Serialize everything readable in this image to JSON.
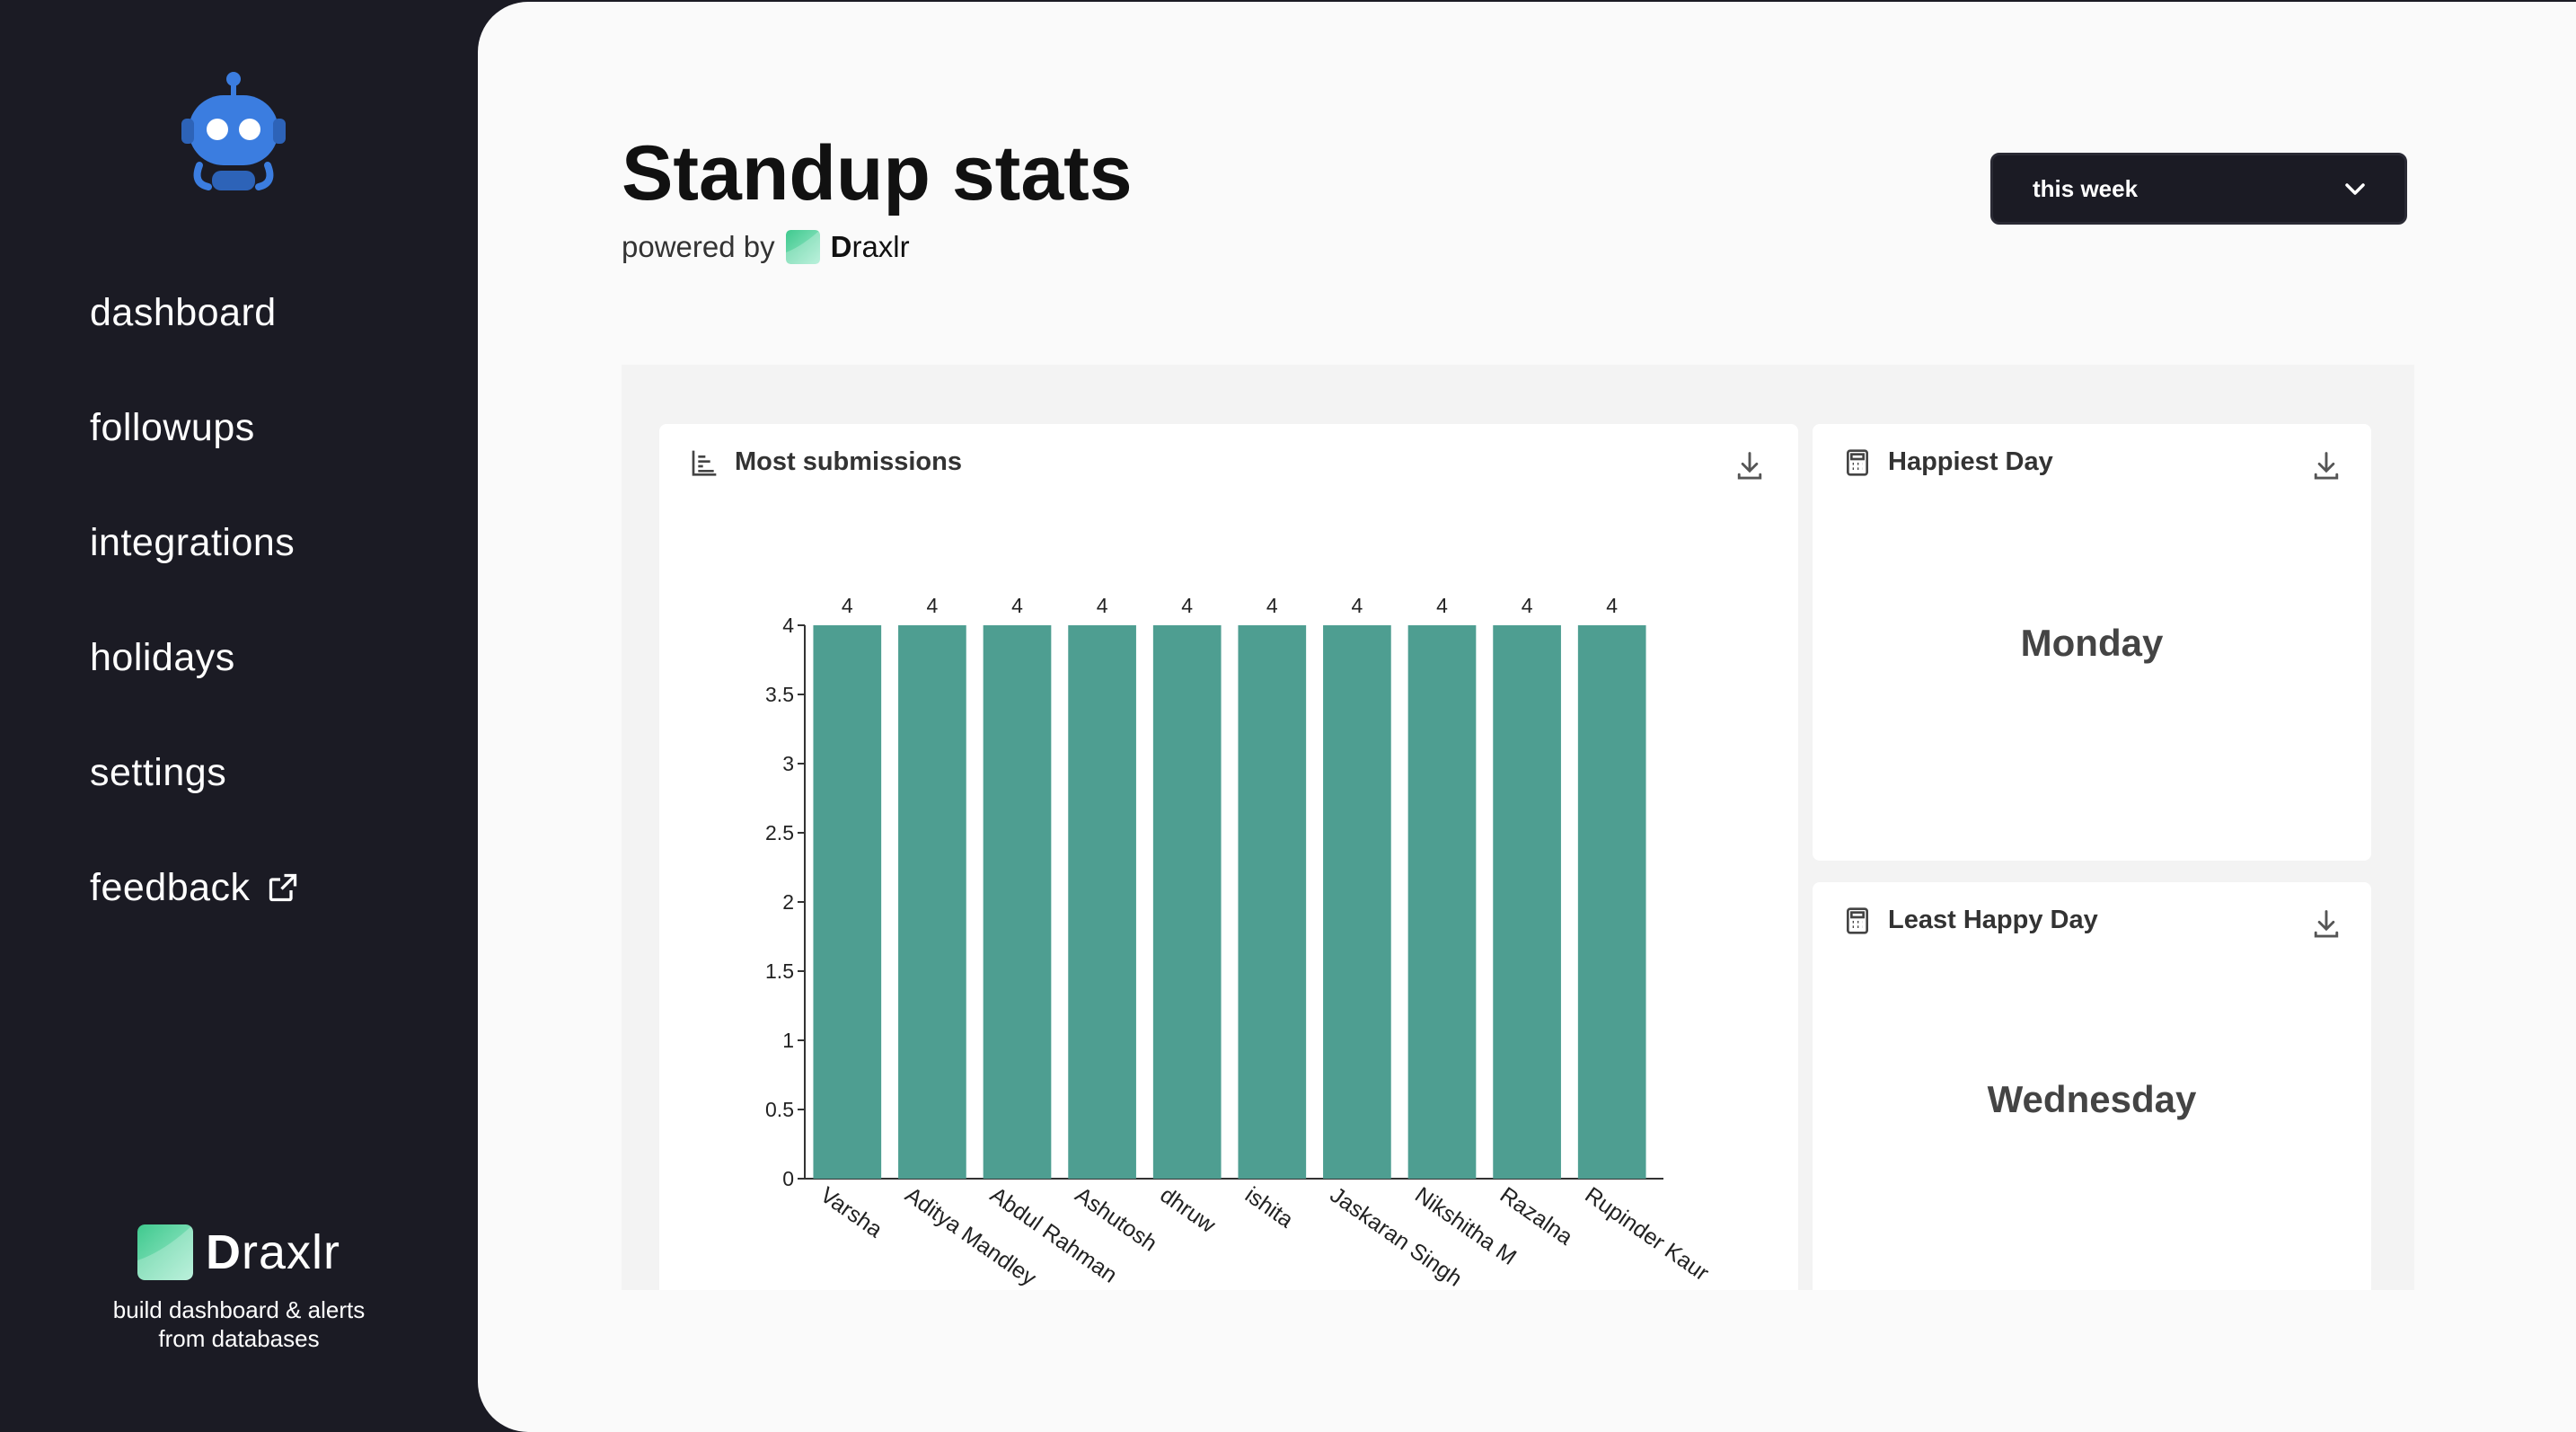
{
  "sidebar": {
    "items": [
      {
        "label": "dashboard"
      },
      {
        "label": "followups"
      },
      {
        "label": "integrations"
      },
      {
        "label": "holidays"
      },
      {
        "label": "settings"
      },
      {
        "label": "feedback"
      }
    ],
    "brand": {
      "name_bold": "D",
      "name_rest": "raxlr",
      "tagline_line1": "build dashboard & alerts",
      "tagline_line2": "from databases"
    }
  },
  "header": {
    "title": "Standup stats",
    "powered_by": "powered by",
    "brand_bold": "D",
    "brand_rest": "raxlr"
  },
  "period_select": {
    "value": "this week"
  },
  "cards": {
    "most_submissions": {
      "title": "Most submissions"
    },
    "happiest_day": {
      "title": "Happiest Day",
      "value": "Monday"
    },
    "least_happy_day": {
      "title": "Least Happy Day",
      "value": "Wednesday"
    }
  },
  "colors": {
    "bar": "#4e9e91",
    "accent_logo": "#5ed3a4",
    "robot": "#3b7de0"
  },
  "icons": {
    "bar_chart": "bar-chart-icon",
    "calculator": "calculator-icon",
    "download": "download-icon",
    "external": "external-link-icon",
    "chevron": "chevron-down-icon"
  },
  "chart_data": {
    "type": "bar",
    "categories": [
      "Varsha",
      "Aditya Mandley",
      "Abdul Rahman",
      "Ashutosh",
      "dhruw",
      "ishita",
      "Jaskaran Singh",
      "Nikshitha M",
      "Razalna",
      "Rupinder Kaur"
    ],
    "values": [
      4,
      4,
      4,
      4,
      4,
      4,
      4,
      4,
      4,
      4
    ],
    "ylim": [
      0,
      4
    ],
    "yticks": [
      "0",
      "0.5",
      "1",
      "1.5",
      "2",
      "2.5",
      "3",
      "3.5",
      "4"
    ],
    "data_labels": true,
    "grid": false
  }
}
